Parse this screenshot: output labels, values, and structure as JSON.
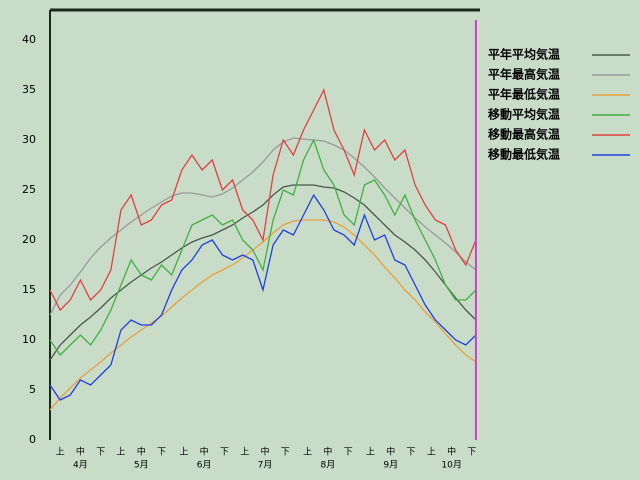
{
  "chart_data": {
    "type": "line",
    "xlim": [
      0,
      212
    ],
    "ylim": [
      0,
      43
    ],
    "yticks": [
      0,
      5,
      10,
      15,
      20,
      25,
      30,
      35,
      40
    ],
    "xticks": [
      {
        "value": 5,
        "label": "上"
      },
      {
        "value": 15,
        "label": "中"
      },
      {
        "value": 25,
        "label": "下"
      },
      {
        "value": 35,
        "label": "上"
      },
      {
        "value": 45,
        "label": "中"
      },
      {
        "value": 55,
        "label": "下"
      },
      {
        "value": 66,
        "label": "上"
      },
      {
        "value": 76,
        "label": "中"
      },
      {
        "value": 86,
        "label": "下"
      },
      {
        "value": 96,
        "label": "上"
      },
      {
        "value": 106,
        "label": "中"
      },
      {
        "value": 116,
        "label": "下"
      },
      {
        "value": 127,
        "label": "上"
      },
      {
        "value": 137,
        "label": "中"
      },
      {
        "value": 147,
        "label": "下"
      },
      {
        "value": 158,
        "label": "上"
      },
      {
        "value": 168,
        "label": "中"
      },
      {
        "value": 178,
        "label": "下"
      },
      {
        "value": 188,
        "label": "上"
      },
      {
        "value": 198,
        "label": "中"
      },
      {
        "value": 208,
        "label": "下"
      }
    ],
    "month_ticks": [
      {
        "value": 15,
        "label": "4月"
      },
      {
        "value": 45,
        "label": "5月"
      },
      {
        "value": 76,
        "label": "6月"
      },
      {
        "value": 106,
        "label": "7月"
      },
      {
        "value": 137,
        "label": "8月"
      },
      {
        "value": 168,
        "label": "9月"
      },
      {
        "value": 198,
        "label": "10月"
      }
    ],
    "current_day": 210,
    "current_day_color": "#d040d0",
    "x": [
      0,
      5,
      10,
      15,
      20,
      25,
      30,
      35,
      40,
      45,
      50,
      55,
      60,
      65,
      70,
      75,
      80,
      85,
      90,
      95,
      100,
      105,
      110,
      115,
      120,
      125,
      130,
      135,
      140,
      145,
      150,
      155,
      160,
      165,
      170,
      175,
      180,
      185,
      190,
      195,
      200,
      205,
      210
    ],
    "series": [
      {
        "name": "平年平均気温",
        "color": "#4a584a",
        "values": [
          8,
          9.5,
          10.5,
          11.5,
          12.3,
          13.2,
          14.2,
          15,
          15.8,
          16.5,
          17.2,
          17.8,
          18.5,
          19.2,
          19.8,
          20.2,
          20.5,
          21,
          21.5,
          22.2,
          22.8,
          23.5,
          24.5,
          25.3,
          25.5,
          25.5,
          25.5,
          25.3,
          25.2,
          24.8,
          24.2,
          23.5,
          22.5,
          21.5,
          20.5,
          19.8,
          19,
          18,
          16.8,
          15.5,
          14.2,
          13,
          12
        ]
      },
      {
        "name": "平年最高気温",
        "color": "#9a9a9a",
        "values": [
          12.5,
          14.5,
          15.5,
          16.8,
          18.2,
          19.3,
          20.2,
          21,
          21.8,
          22.5,
          23.2,
          23.8,
          24.4,
          24.7,
          24.7,
          24.5,
          24.3,
          24.6,
          25.2,
          26,
          26.8,
          27.8,
          29,
          29.8,
          30.2,
          30.1,
          30,
          29.9,
          29.5,
          29,
          28.2,
          27.3,
          26.3,
          25.2,
          24.2,
          23.2,
          22.2,
          21.3,
          20.5,
          19.7,
          18.8,
          17.8,
          17
        ]
      },
      {
        "name": "平年最低気温",
        "color": "#e8a040",
        "values": [
          3,
          4.2,
          5.2,
          6.2,
          7,
          7.8,
          8.7,
          9.5,
          10.3,
          11,
          11.7,
          12.4,
          13.3,
          14.2,
          15,
          15.8,
          16.5,
          17,
          17.5,
          18.2,
          19,
          19.8,
          20.7,
          21.5,
          21.9,
          22,
          22,
          22,
          21.8,
          21.3,
          20.5,
          19.5,
          18.5,
          17.3,
          16.2,
          15,
          14,
          12.8,
          11.8,
          10.6,
          9.5,
          8.5,
          7.8
        ]
      },
      {
        "name": "移動平均気温",
        "color": "#40b040",
        "values": [
          10,
          8.5,
          9.5,
          10.5,
          9.5,
          11,
          13,
          15.5,
          18,
          16.5,
          16,
          17.5,
          16.5,
          19,
          21.5,
          22,
          22.5,
          21.5,
          22,
          20,
          19,
          17,
          22,
          25,
          24.5,
          28,
          30,
          27,
          25.5,
          22.5,
          21.5,
          25.5,
          26,
          24.5,
          22.5,
          24.5,
          22,
          20,
          18,
          15.5,
          14,
          14,
          15
        ]
      },
      {
        "name": "移動最高気温",
        "color": "#e04040",
        "values": [
          15,
          13,
          14,
          16,
          14,
          15,
          17,
          23,
          24.5,
          21.5,
          22,
          23.5,
          24,
          27,
          28.5,
          27,
          28,
          25,
          26,
          23,
          22,
          20,
          26.5,
          30,
          28.5,
          31,
          33,
          35,
          31,
          29,
          26.5,
          31,
          29,
          30,
          28,
          29,
          25.5,
          23.5,
          22,
          21.5,
          19,
          17.5,
          20
        ]
      },
      {
        "name": "移動最低気温",
        "color": "#2040e0",
        "values": [
          5.5,
          4,
          4.5,
          6,
          5.5,
          6.5,
          7.5,
          11,
          12,
          11.5,
          11.5,
          12.5,
          15,
          17,
          18,
          19.5,
          20,
          18.5,
          18,
          18.5,
          18,
          15,
          19.5,
          21,
          20.5,
          22.5,
          24.5,
          23,
          21,
          20.5,
          19.5,
          22.5,
          20,
          20.5,
          18,
          17.5,
          15.5,
          13.5,
          12,
          11,
          10,
          9.5,
          10.5
        ]
      }
    ]
  }
}
